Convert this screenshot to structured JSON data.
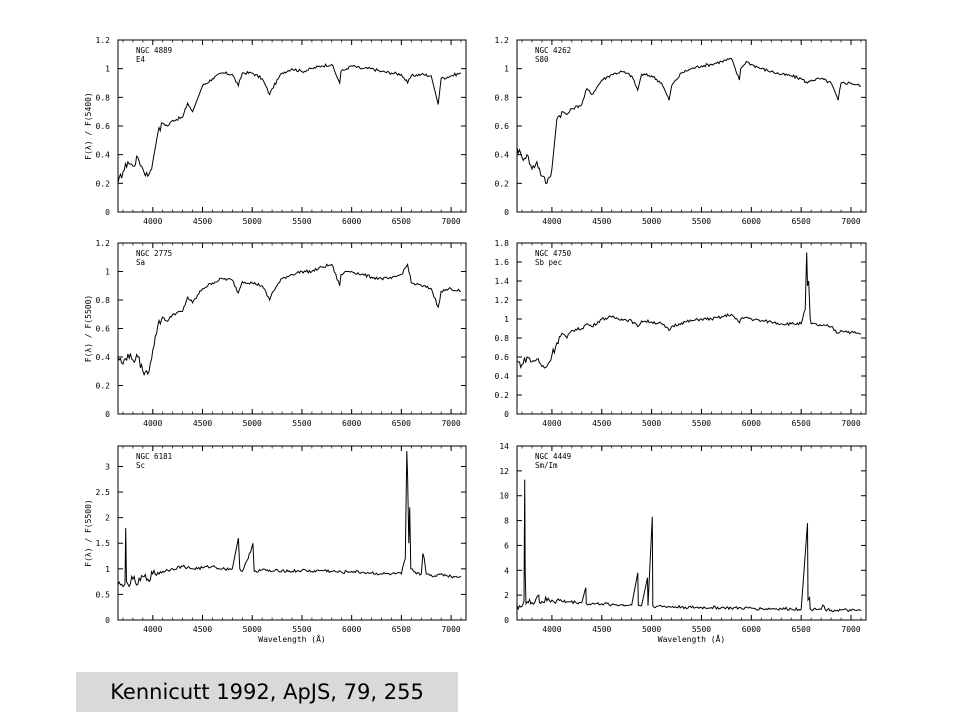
{
  "caption": "Kennicutt 1992, ApJS, 79, 255",
  "chart_data": [
    {
      "type": "line",
      "label_lines": [
        "NGC 4889",
        "E4"
      ],
      "ylabel": "F(λ) / F(5400)",
      "xlabel": "",
      "xlim": [
        3650,
        7150
      ],
      "ylim": [
        0,
        1.2
      ],
      "xticks": [
        4000,
        4500,
        5000,
        5500,
        6000,
        6500,
        7000
      ],
      "yticks": [
        0,
        0.2,
        0.4,
        0.6,
        0.8,
        1,
        1.2
      ],
      "grid": false,
      "series": [
        {
          "x": [
            3650,
            3700,
            3750,
            3800,
            3850,
            3900,
            3950,
            4000,
            4050,
            4100,
            4150,
            4200,
            4300,
            4350,
            4400,
            4500,
            4600,
            4700,
            4800,
            4860,
            4900,
            5000,
            5100,
            5175,
            5200,
            5300,
            5400,
            5500,
            5600,
            5700,
            5800,
            5880,
            5893,
            5950,
            6000,
            6100,
            6200,
            6300,
            6400,
            6500,
            6563,
            6600,
            6700,
            6800,
            6870,
            6900,
            7000,
            7100
          ],
          "y": [
            0.2,
            0.28,
            0.35,
            0.32,
            0.38,
            0.3,
            0.25,
            0.35,
            0.55,
            0.62,
            0.6,
            0.64,
            0.66,
            0.76,
            0.7,
            0.88,
            0.93,
            0.97,
            0.96,
            0.88,
            0.97,
            0.97,
            0.93,
            0.82,
            0.86,
            0.97,
            1.0,
            0.98,
            1.0,
            1.02,
            1.03,
            0.9,
            0.98,
            1.0,
            1.02,
            1.0,
            1.0,
            0.98,
            0.97,
            0.96,
            0.9,
            0.95,
            0.96,
            0.95,
            0.75,
            0.93,
            0.95,
            0.97
          ]
        }
      ]
    },
    {
      "type": "line",
      "label_lines": [
        "NGC 4262",
        "S80"
      ],
      "ylabel": "",
      "xlabel": "",
      "xlim": [
        3650,
        7150
      ],
      "ylim": [
        0,
        1.2
      ],
      "xticks": [
        4000,
        4500,
        5000,
        5500,
        6000,
        6500,
        7000
      ],
      "yticks": [
        0,
        0.2,
        0.4,
        0.6,
        0.8,
        1,
        1.2
      ],
      "grid": false,
      "series": [
        {
          "x": [
            3650,
            3700,
            3750,
            3800,
            3850,
            3900,
            3950,
            4000,
            4050,
            4100,
            4150,
            4200,
            4300,
            4350,
            4400,
            4500,
            4600,
            4700,
            4800,
            4860,
            4900,
            5000,
            5100,
            5175,
            5200,
            5300,
            5400,
            5500,
            5600,
            5700,
            5800,
            5880,
            5893,
            5950,
            6000,
            6100,
            6200,
            6300,
            6400,
            6500,
            6563,
            6600,
            6700,
            6800,
            6870,
            6900,
            7000,
            7100
          ],
          "y": [
            0.45,
            0.38,
            0.4,
            0.3,
            0.35,
            0.25,
            0.2,
            0.3,
            0.65,
            0.7,
            0.68,
            0.72,
            0.75,
            0.86,
            0.82,
            0.92,
            0.96,
            0.98,
            0.95,
            0.85,
            0.96,
            0.95,
            0.9,
            0.78,
            0.88,
            0.97,
            1.0,
            1.02,
            1.03,
            1.05,
            1.07,
            0.92,
            1.0,
            1.05,
            1.03,
            1.0,
            0.98,
            0.96,
            0.95,
            0.93,
            0.9,
            0.92,
            0.93,
            0.9,
            0.78,
            0.9,
            0.9,
            0.88
          ]
        }
      ]
    },
    {
      "type": "line",
      "label_lines": [
        "NGC 2775",
        "Sa"
      ],
      "ylabel": "F(λ) / F(5500)",
      "xlabel": "",
      "xlim": [
        3650,
        7150
      ],
      "ylim": [
        0,
        1.2
      ],
      "xticks": [
        4000,
        4500,
        5000,
        5500,
        6000,
        6500,
        7000
      ],
      "yticks": [
        0,
        0.2,
        0.4,
        0.6,
        0.8,
        1,
        1.2
      ],
      "grid": false,
      "series": [
        {
          "x": [
            3650,
            3700,
            3750,
            3800,
            3850,
            3900,
            3950,
            4000,
            4050,
            4100,
            4150,
            4200,
            4300,
            4350,
            4400,
            4500,
            4600,
            4700,
            4800,
            4860,
            4900,
            5000,
            5100,
            5175,
            5200,
            5300,
            5400,
            5500,
            5600,
            5700,
            5800,
            5880,
            5893,
            5950,
            6000,
            6100,
            6200,
            6300,
            6400,
            6500,
            6563,
            6600,
            6700,
            6800,
            6870,
            6900,
            7000,
            7100
          ],
          "y": [
            0.4,
            0.35,
            0.42,
            0.38,
            0.4,
            0.3,
            0.28,
            0.45,
            0.62,
            0.68,
            0.65,
            0.7,
            0.72,
            0.82,
            0.78,
            0.88,
            0.92,
            0.95,
            0.94,
            0.85,
            0.93,
            0.92,
            0.9,
            0.8,
            0.85,
            0.95,
            0.98,
            1.0,
            1.0,
            1.03,
            1.05,
            0.9,
            0.98,
            1.0,
            1.0,
            0.98,
            0.96,
            0.95,
            0.95,
            0.98,
            1.05,
            0.92,
            0.9,
            0.88,
            0.75,
            0.86,
            0.88,
            0.86
          ]
        }
      ]
    },
    {
      "type": "line",
      "label_lines": [
        "NGC 4750",
        "Sb pec"
      ],
      "ylabel": "",
      "xlabel": "",
      "xlim": [
        3650,
        7150
      ],
      "ylim": [
        0,
        1.8
      ],
      "xticks": [
        4000,
        4500,
        5000,
        5500,
        6000,
        6500,
        7000
      ],
      "yticks": [
        0,
        0.2,
        0.4,
        0.6,
        0.8,
        1,
        1.2,
        1.4,
        1.6,
        1.8
      ],
      "grid": false,
      "series": [
        {
          "x": [
            3650,
            3700,
            3750,
            3800,
            3850,
            3900,
            3950,
            4000,
            4050,
            4100,
            4150,
            4200,
            4300,
            4350,
            4400,
            4500,
            4600,
            4700,
            4800,
            4860,
            4900,
            5000,
            5100,
            5175,
            5200,
            5300,
            5400,
            5500,
            5600,
            5700,
            5800,
            5880,
            5893,
            5950,
            6000,
            6100,
            6200,
            6300,
            6400,
            6500,
            6540,
            6555,
            6563,
            6575,
            6590,
            6600,
            6700,
            6800,
            6870,
            6900,
            7000,
            7100
          ],
          "y": [
            0.55,
            0.52,
            0.6,
            0.55,
            0.58,
            0.5,
            0.5,
            0.62,
            0.75,
            0.85,
            0.8,
            0.88,
            0.9,
            0.95,
            0.92,
            1.0,
            1.02,
            1.0,
            0.98,
            0.92,
            0.98,
            0.97,
            0.95,
            0.88,
            0.92,
            0.96,
            0.98,
            1.0,
            1.0,
            1.02,
            1.05,
            0.96,
            1.0,
            1.02,
            1.0,
            0.98,
            0.97,
            0.95,
            0.95,
            0.95,
            1.1,
            1.7,
            1.35,
            1.4,
            1.0,
            0.95,
            0.93,
            0.92,
            0.85,
            0.88,
            0.86,
            0.84
          ]
        }
      ]
    },
    {
      "type": "line",
      "label_lines": [
        "NGC 6181",
        "Sc"
      ],
      "ylabel": "F(λ) / F(5500)",
      "xlabel": "Wavelength  (Å)",
      "xlim": [
        3650,
        7150
      ],
      "ylim": [
        0,
        3.4
      ],
      "xticks": [
        4000,
        4500,
        5000,
        5500,
        6000,
        6500,
        7000
      ],
      "yticks": [
        0,
        0.5,
        1,
        1.5,
        2,
        2.5,
        3
      ],
      "ytick_labels": [
        "0",
        "0.5",
        "1",
        "1.5",
        "2",
        "2.5",
        "3"
      ],
      "grid": false,
      "series": [
        {
          "x": [
            3650,
            3700,
            3720,
            3727,
            3735,
            3750,
            3800,
            3850,
            3900,
            3950,
            4000,
            4100,
            4200,
            4300,
            4400,
            4500,
            4600,
            4700,
            4800,
            4861,
            4875,
            4900,
            4959,
            5007,
            5020,
            5100,
            5200,
            5300,
            5400,
            5500,
            5600,
            5700,
            5800,
            5900,
            6000,
            6100,
            6200,
            6300,
            6400,
            6500,
            6540,
            6555,
            6563,
            6575,
            6584,
            6595,
            6650,
            6700,
            6717,
            6731,
            6750,
            6800,
            6850,
            6900,
            7000,
            7100
          ],
          "y": [
            0.7,
            0.65,
            0.7,
            1.8,
            0.75,
            0.7,
            0.8,
            0.7,
            0.85,
            0.8,
            0.9,
            0.95,
            1.0,
            1.05,
            1.0,
            1.02,
            1.05,
            1.0,
            1.0,
            1.6,
            1.0,
            0.95,
            1.2,
            1.5,
            0.95,
            0.98,
            0.95,
            0.97,
            0.95,
            0.97,
            0.95,
            0.97,
            0.95,
            0.93,
            0.95,
            0.93,
            0.92,
            0.9,
            0.9,
            0.9,
            1.2,
            3.3,
            2.8,
            1.5,
            2.2,
            1.0,
            0.9,
            0.9,
            1.3,
            1.2,
            0.9,
            0.88,
            0.85,
            0.9,
            0.85,
            0.85
          ]
        }
      ]
    },
    {
      "type": "line",
      "label_lines": [
        "NGC 4449",
        "Sm/Im"
      ],
      "ylabel": "",
      "xlabel": "Wavelength  (Å)",
      "xlim": [
        3650,
        7150
      ],
      "ylim": [
        0,
        14
      ],
      "xticks": [
        4000,
        4500,
        5000,
        5500,
        6000,
        6500,
        7000
      ],
      "yticks": [
        0,
        2,
        4,
        6,
        8,
        10,
        12,
        14
      ],
      "grid": false,
      "series": [
        {
          "x": [
            3650,
            3700,
            3720,
            3727,
            3732,
            3740,
            3800,
            3869,
            3875,
            3900,
            4000,
            4100,
            4300,
            4340,
            4345,
            4400,
            4500,
            4600,
            4700,
            4800,
            4861,
            4866,
            4900,
            4959,
            4964,
            5007,
            5012,
            5050,
            5100,
            5200,
            5300,
            5400,
            5500,
            5600,
            5700,
            5800,
            5900,
            6000,
            6100,
            6200,
            6300,
            6400,
            6500,
            6563,
            6568,
            6584,
            6590,
            6650,
            6700,
            6717,
            6731,
            6740,
            6800,
            6900,
            7000,
            7100
          ],
          "y": [
            1.2,
            1.1,
            1.5,
            11.3,
            3.8,
            1.3,
            1.4,
            2.0,
            1.4,
            1.5,
            1.6,
            1.5,
            1.4,
            2.6,
            1.3,
            1.3,
            1.3,
            1.25,
            1.2,
            1.2,
            3.8,
            1.2,
            1.15,
            3.4,
            1.15,
            8.3,
            1.15,
            1.1,
            1.1,
            1.05,
            1.05,
            1.0,
            1.0,
            1.0,
            1.0,
            0.95,
            0.95,
            0.95,
            0.9,
            0.9,
            0.9,
            0.88,
            0.88,
            7.8,
            1.6,
            1.8,
            0.9,
            0.85,
            0.85,
            1.2,
            1.1,
            0.85,
            0.8,
            0.8,
            0.75,
            0.75
          ]
        }
      ]
    }
  ]
}
